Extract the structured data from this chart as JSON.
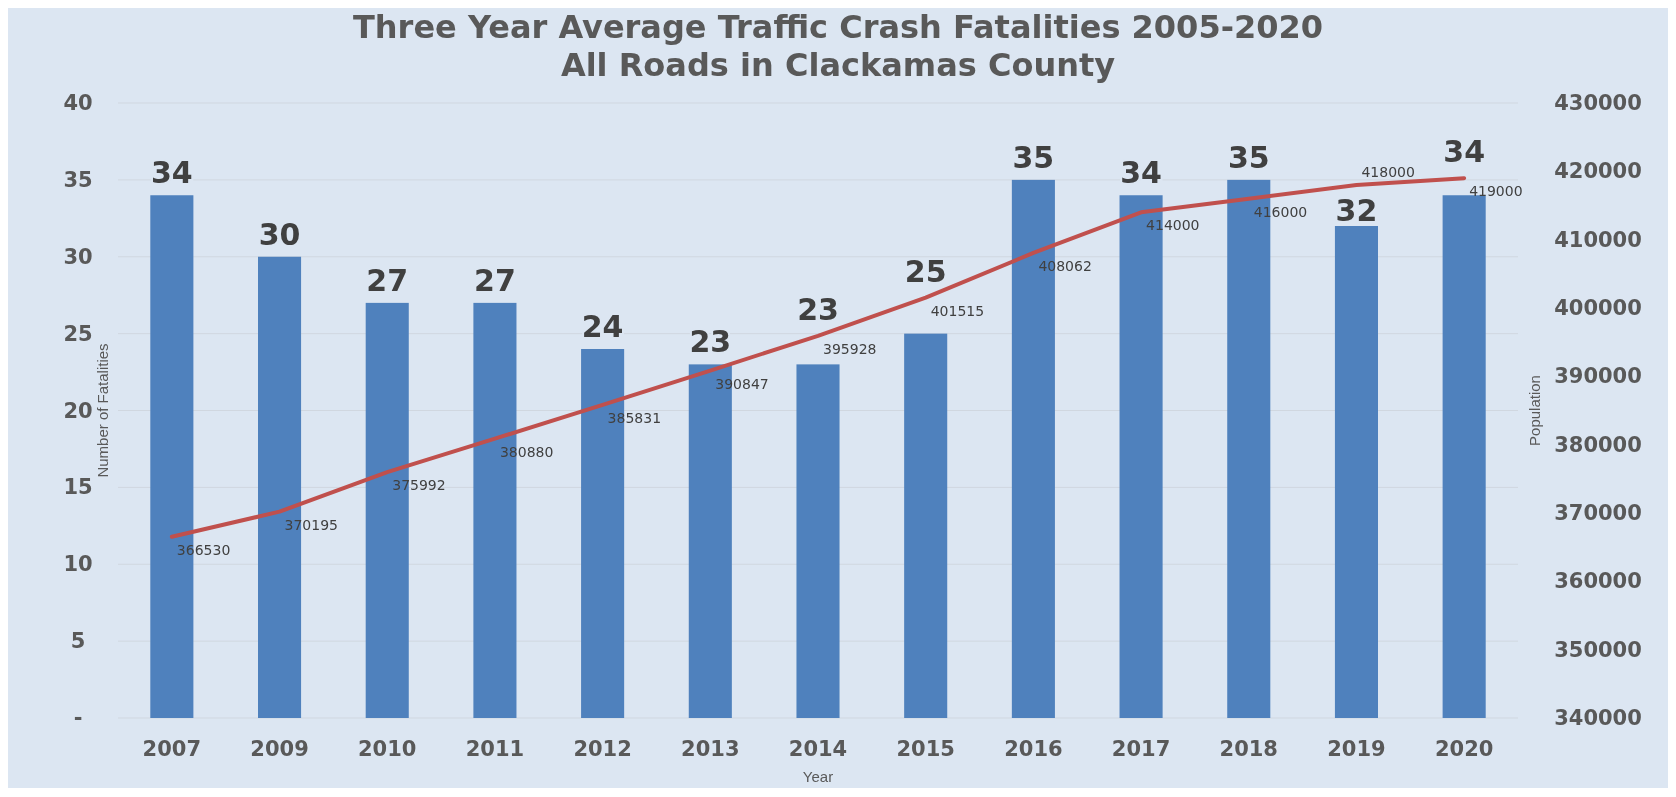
{
  "chart_data": {
    "type": "bar",
    "title": "Three Year Average Traffic Crash Fatalities 2005-2020",
    "subtitle": "All Roads in Clackamas County",
    "xlabel": "Year",
    "ylabel": "Number of Fatalities",
    "y2label": "Population",
    "categories": [
      "2007",
      "2009",
      "2010",
      "2011",
      "2012",
      "2013",
      "2014",
      "2015",
      "2016",
      "2017",
      "2018",
      "2019",
      "2020"
    ],
    "series": [
      {
        "color": "#4f81bd",
        "values": [
          34,
          30,
          27,
          27,
          24,
          23,
          23,
          25,
          35,
          34,
          35,
          32,
          34
        ]
      },
      {
        "type": "line",
        "axis": "y2",
        "color": "#c0504d",
        "values": [
          366530,
          370195,
          375992,
          380880,
          385831,
          390847,
          395928,
          401515,
          408062,
          414000,
          416000,
          418000,
          419000
        ]
      }
    ],
    "ylim": [
      0,
      40
    ],
    "yticks": [
      {
        "value": 0,
        "label": "-"
      },
      5,
      10,
      15,
      20,
      25,
      30,
      35,
      40
    ],
    "y2lim": [
      340000,
      430000
    ],
    "y2ticks": [
      340000,
      350000,
      360000,
      370000,
      380000,
      390000,
      400000,
      410000,
      420000,
      430000
    ],
    "grid": "y",
    "data_labels": true,
    "marker": "none",
    "line_style": "solid"
  }
}
